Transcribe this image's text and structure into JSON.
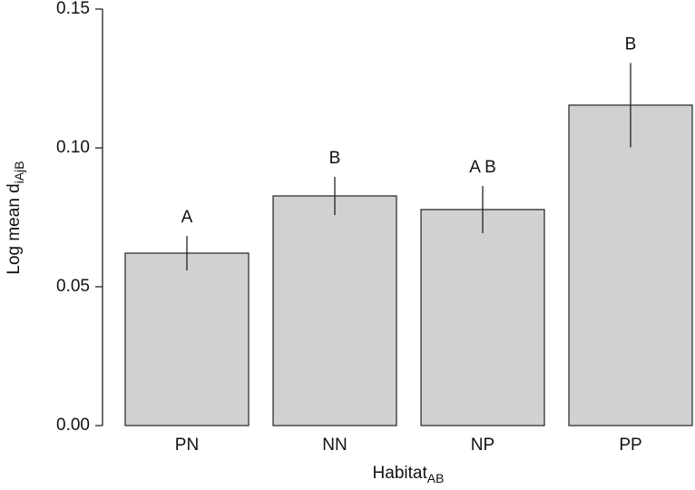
{
  "chart_data": {
    "type": "bar",
    "y_label": "Log mean d",
    "y_label_sub": "iAjB",
    "x_label": "Habitat",
    "x_label_sub": "AB",
    "categories": [
      "PN",
      "NN",
      "NP",
      "PP"
    ],
    "values": [
      0.0621,
      0.0827,
      0.0778,
      0.1154
    ],
    "errors": [
      0.0062,
      0.0069,
      0.0085,
      0.0152
    ],
    "annotations": [
      "A",
      "B",
      "A B",
      "B"
    ],
    "color": "#d0d1d3",
    "ylim": [
      0,
      0.15
    ],
    "yticks": [
      {
        "value": 0,
        "label": "0.00"
      },
      0.05,
      {
        "value": 0.1,
        "label": "0.10"
      },
      0.15
    ]
  }
}
